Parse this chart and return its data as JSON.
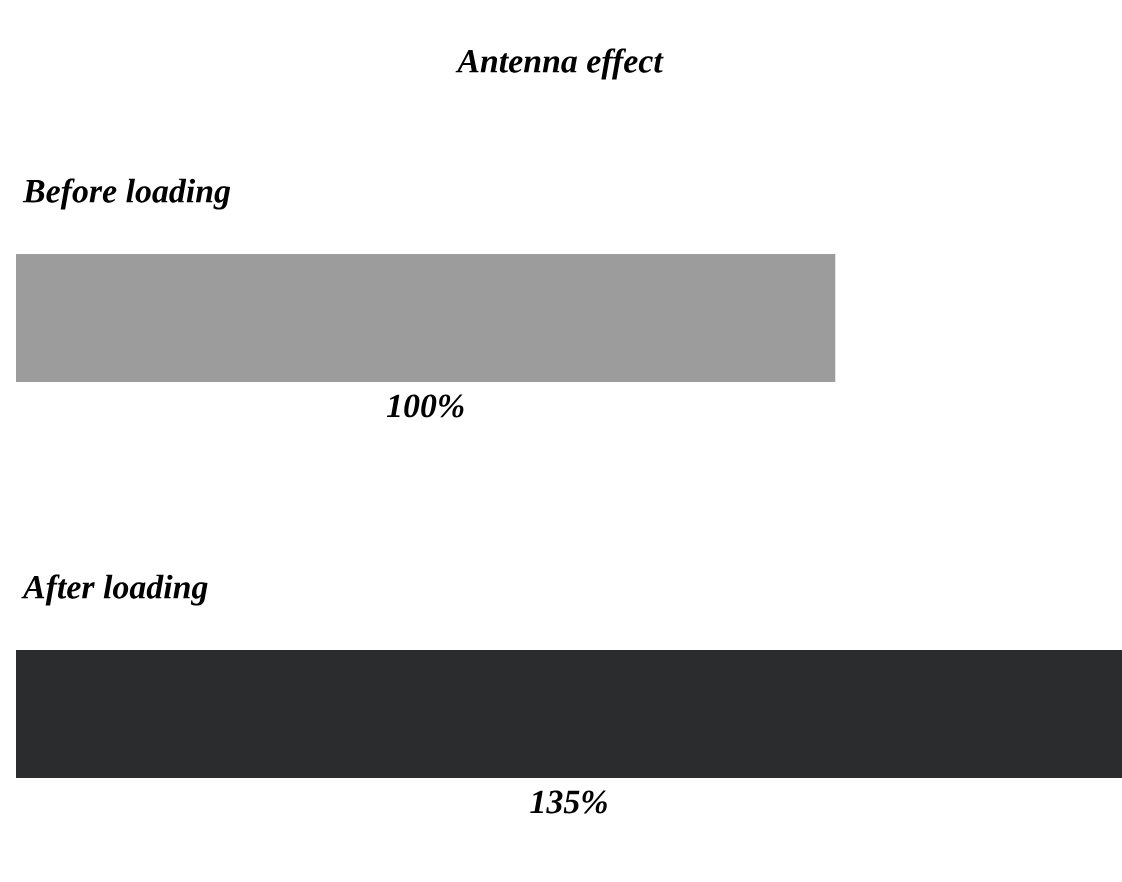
{
  "chart_data": {
    "type": "bar",
    "orientation": "horizontal",
    "title": "Antenna effect",
    "categories": [
      "Before loading",
      "After loading"
    ],
    "values": [
      100,
      135
    ],
    "value_labels": [
      "100%",
      "135%"
    ],
    "colors": [
      "#9c9c9c",
      "#2a2c2e"
    ]
  }
}
